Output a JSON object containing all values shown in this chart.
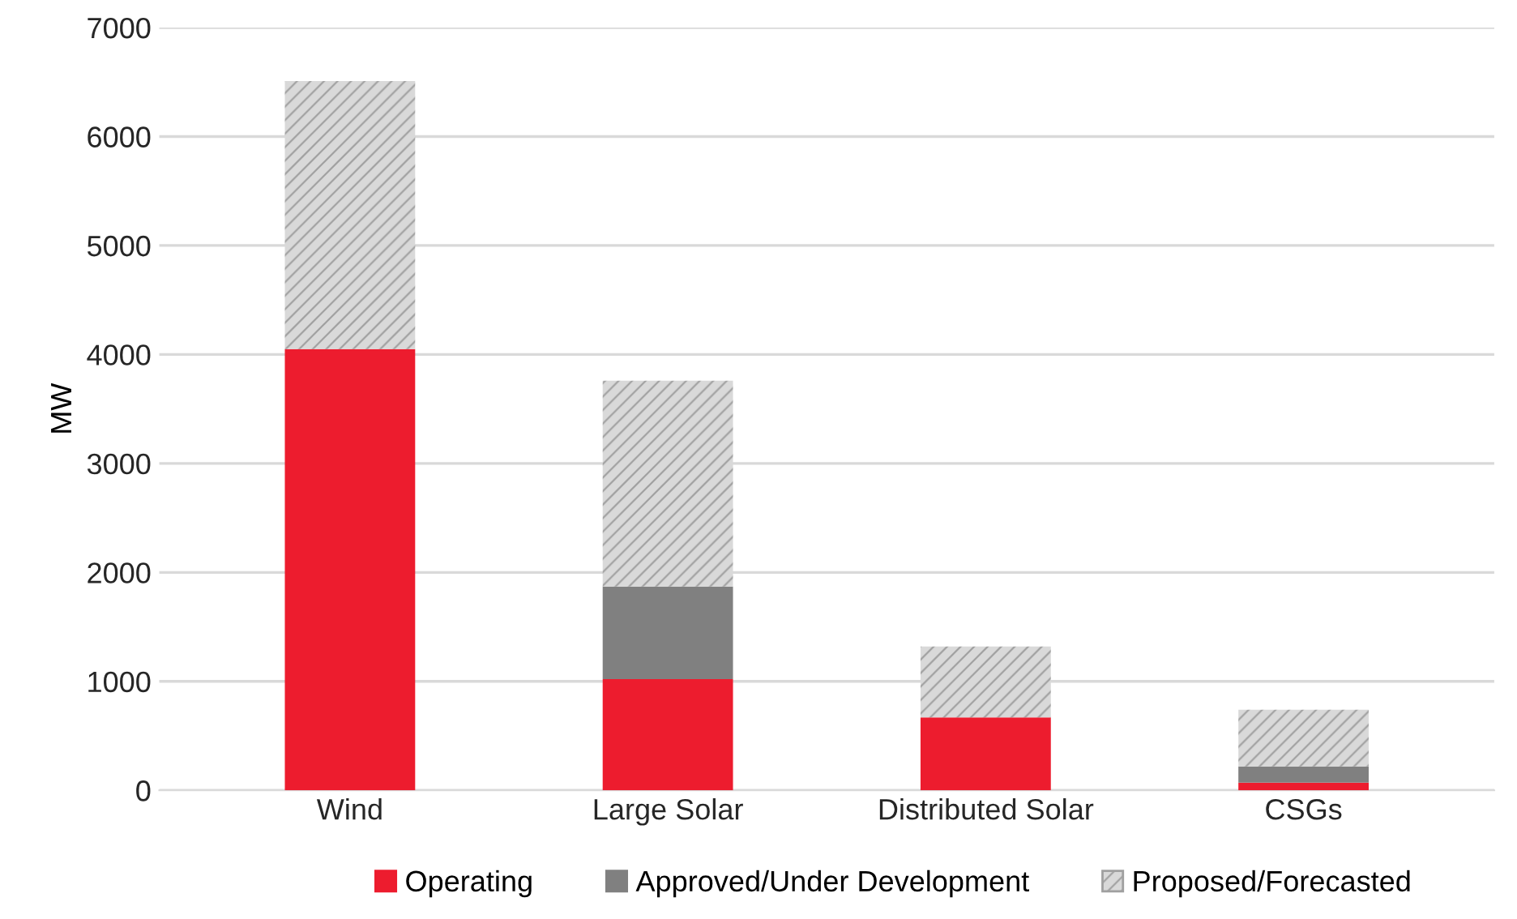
{
  "chart_data": {
    "type": "bar",
    "stacked": true,
    "ylabel": "MW",
    "categories": [
      "Wind",
      "Large Solar",
      "Distributed Solar",
      "CSGs"
    ],
    "series": [
      {
        "name": "Operating",
        "color": "#ed1c2e",
        "values": [
          4050,
          1020,
          670,
          70
        ]
      },
      {
        "name": "Approved/Under Development",
        "color": "#808080",
        "values": [
          0,
          850,
          0,
          150
        ]
      },
      {
        "name": "Proposed/Forecasted",
        "color": "#d9d9d9",
        "values": [
          2460,
          1890,
          650,
          520
        ]
      }
    ],
    "ylim": [
      0,
      7000
    ],
    "yticks": [
      0,
      1000,
      2000,
      3000,
      4000,
      5000,
      6000,
      7000
    ],
    "grid": "y",
    "legend": "bottom"
  }
}
